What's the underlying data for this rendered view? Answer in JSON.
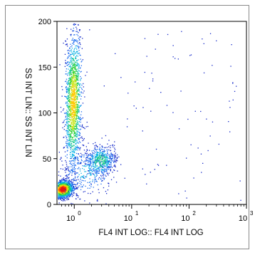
{
  "chart_data": {
    "type": "scatter",
    "title": "",
    "xlabel": "FL4 INT LOG:: FL4 INT LOG",
    "ylabel": "SS INT LIN:: SS INT LIN",
    "x_scale": "log",
    "xlim": [
      0.5,
      1000
    ],
    "ylim": [
      0,
      200
    ],
    "x_ticks": [
      {
        "base": "10",
        "exp": "0",
        "value": 1
      },
      {
        "base": "10",
        "exp": "1",
        "value": 10
      },
      {
        "base": "10",
        "exp": "2",
        "value": 100
      },
      {
        "base": "10",
        "exp": "3",
        "value": 1000
      }
    ],
    "y_ticks": [
      {
        "label": "0",
        "value": 0
      },
      {
        "label": "50",
        "value": 50
      },
      {
        "label": "100",
        "value": 100
      },
      {
        "label": "150",
        "value": 150
      },
      {
        "label": "200",
        "value": 200
      }
    ],
    "grid": false,
    "legend": "none",
    "colormap": "density (blue → cyan → green → yellow → red)",
    "populations": [
      {
        "center_x": 0.6,
        "center_y": 17,
        "relative_density": "highest"
      },
      {
        "center_x": 0.95,
        "center_y": 110,
        "relative_density": "high"
      },
      {
        "center_x": 2.8,
        "center_y": 47,
        "relative_density": "medium"
      },
      {
        "center_x": 40,
        "center_y": 80,
        "relative_density": "sparse"
      }
    ]
  }
}
